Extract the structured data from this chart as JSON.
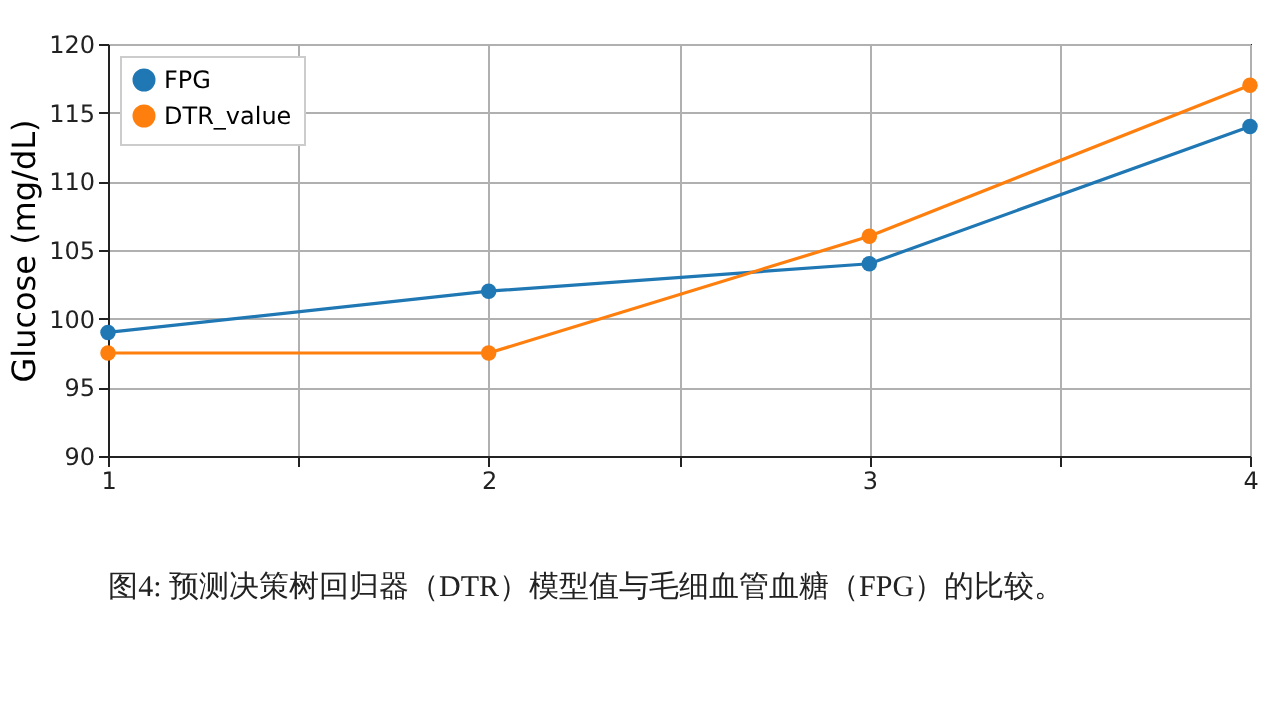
{
  "chart_data": {
    "type": "line",
    "ylabel": "Glucose (mg/dL)",
    "x": [
      1,
      2,
      3,
      4
    ],
    "series": [
      {
        "name": "FPG",
        "color": "#1f77b4",
        "values": [
          99,
          102,
          104,
          114
        ]
      },
      {
        "name": "DTR_value",
        "color": "#ff7f0e",
        "values": [
          97.5,
          97.5,
          106,
          117
        ]
      }
    ],
    "xlim": [
      1,
      4
    ],
    "xticks": [
      1,
      {
        "value": 1.5,
        "label": null
      },
      2,
      {
        "value": 2.5,
        "label": null
      },
      3,
      {
        "value": 3.5,
        "label": null
      },
      4
    ],
    "ylim": [
      90,
      120
    ],
    "yticks": [
      90,
      95,
      100,
      105,
      110,
      115,
      120
    ],
    "grid": true,
    "legend": "top left",
    "marker": "circle",
    "line_style": "solid",
    "annotations": [
      "图4: 预测决策树回归器（DTR）模型值与毛细血管血糖（FPG）的比较。"
    ]
  }
}
